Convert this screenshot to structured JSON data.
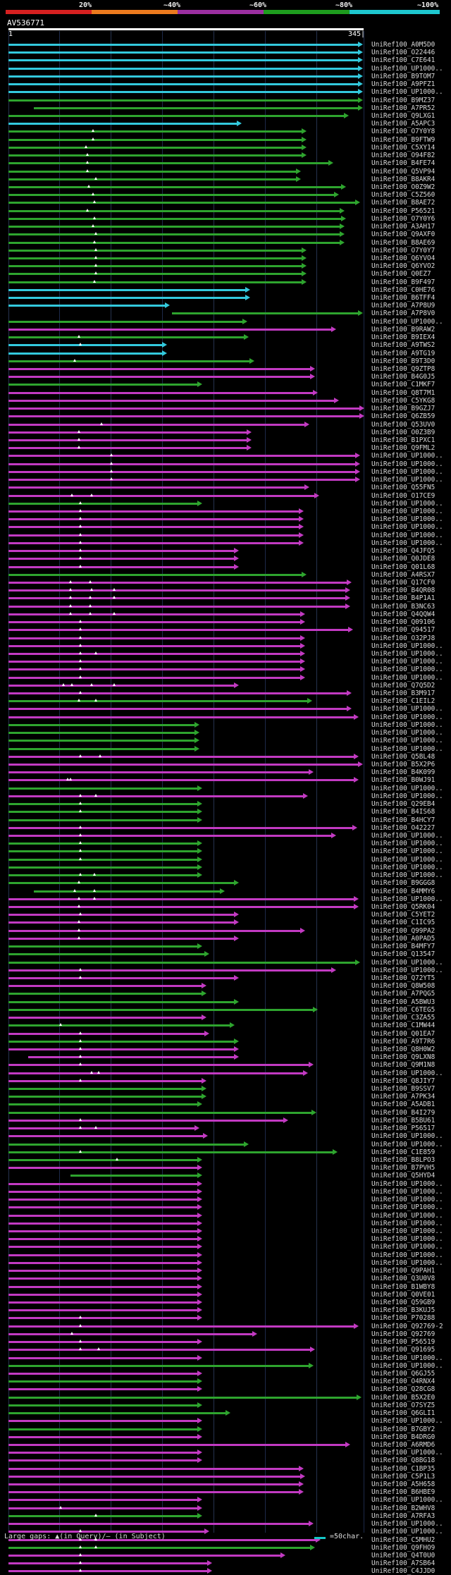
{
  "legend": {
    "labels": [
      "20%",
      "~40%",
      "~60%",
      "~80%",
      "~100%"
    ],
    "colors": [
      "#d62020",
      "#ec7a1e",
      "#9b2fa0",
      "#1e9c1e",
      "#1ec7cf"
    ]
  },
  "query": {
    "id": "AV536771",
    "start": "1",
    "end": "345|"
  },
  "colors": {
    "cyan": "#33c9dd",
    "green": "#2ea42e",
    "magenta": "#c23ac2"
  },
  "rows": [
    {
      "label": "UniRef100_A0M5D0",
      "color": "cyan"
    },
    {
      "label": "UniRef100_O22446",
      "color": "cyan"
    },
    {
      "label": "UniRef100_C7E641",
      "color": "cyan"
    },
    {
      "label": "UniRef100_UP1000..",
      "color": "cyan"
    },
    {
      "label": "UniRef100_B9TOM7",
      "color": "cyan"
    },
    {
      "label": "UniRef100_A9PFZ1",
      "color": "cyan"
    },
    {
      "label": "UniRef100_UP1000..",
      "color": "cyan"
    },
    {
      "label": "UniRef100_B9MZ37",
      "color": "green"
    },
    {
      "label": "UniRef100_A7PR52",
      "color": "green"
    },
    {
      "label": "UniRef100_Q9LXG1",
      "color": "green"
    },
    {
      "label": "UniRef100_A5APC3",
      "color": "cyan"
    },
    {
      "label": "UniRef100_O7Y0Y8",
      "color": "green"
    },
    {
      "label": "UniRef100_B9FTW9",
      "color": "green"
    },
    {
      "label": "UniRef100_C5XY14",
      "color": "green"
    },
    {
      "label": "UniRef100_O94F82",
      "color": "green"
    },
    {
      "label": "UniRef100_B4FE74",
      "color": "green"
    },
    {
      "label": "UniRef100_Q5VP94",
      "color": "green"
    },
    {
      "label": "UniRef100_B8AKR4",
      "color": "green"
    },
    {
      "label": "UniRef100_O0Z9W2",
      "color": "green"
    },
    {
      "label": "UniRef100_C5Z560",
      "color": "green"
    },
    {
      "label": "UniRef100_B8AE72",
      "color": "green"
    },
    {
      "label": "UniRef100_P56521",
      "color": "green"
    },
    {
      "label": "UniRef100_O7Y0Y6",
      "color": "green"
    },
    {
      "label": "UniRef100_A3AH17",
      "color": "green"
    },
    {
      "label": "UniRef100_Q9AXF0",
      "color": "green"
    },
    {
      "label": "UniRef100_B8AE69",
      "color": "green"
    },
    {
      "label": "UniRef100_O7Y0Y7",
      "color": "green"
    },
    {
      "label": "UniRef100_Q6YVO4",
      "color": "green"
    },
    {
      "label": "UniRef100_Q6YVO2",
      "color": "green"
    },
    {
      "label": "UniRef100_Q0EZ7",
      "color": "green"
    },
    {
      "label": "UniRef100_B9F497",
      "color": "green"
    },
    {
      "label": "UniRef100_C0HE76",
      "color": "cyan"
    },
    {
      "label": "UniRef100_B6TFF4",
      "color": "cyan"
    },
    {
      "label": "UniRef100_A7P8U9",
      "color": "cyan"
    },
    {
      "label": "UniRef100_A7P8V0",
      "color": "green"
    },
    {
      "label": "UniRef100_UP1000..",
      "color": "green"
    },
    {
      "label": "UniRef100_B9RAW2",
      "color": "magenta"
    },
    {
      "label": "UniRef100_B9IEX4",
      "color": "green"
    },
    {
      "label": "UniRef100_A9TWS2",
      "color": "cyan"
    },
    {
      "label": "UniRef100_A9TG19",
      "color": "cyan"
    },
    {
      "label": "UniRef100_B9T3D0",
      "color": "green"
    },
    {
      "label": "UniRef100_Q9ZTP8",
      "color": "magenta"
    },
    {
      "label": "UniRef100_B4G0J5",
      "color": "magenta"
    },
    {
      "label": "UniRef100_C1MKF7",
      "color": "green"
    },
    {
      "label": "UniRef100_Q8T7M1",
      "color": "magenta"
    },
    {
      "label": "UniRef100_C5YKG8",
      "color": "magenta"
    },
    {
      "label": "UniRef100_B9GZJ7",
      "color": "magenta"
    },
    {
      "label": "UniRef100_Q6ZB59",
      "color": "magenta"
    },
    {
      "label": "UniRef100_Q53UV0",
      "color": "magenta"
    },
    {
      "label": "UniRef100_O0Z3B9",
      "color": "magenta"
    },
    {
      "label": "UniRef100_B1PXC1",
      "color": "magenta"
    },
    {
      "label": "UniRef100_Q9FML2",
      "color": "magenta"
    },
    {
      "label": "UniRef100_UP1000..",
      "color": "magenta"
    },
    {
      "label": "UniRef100_UP1000..",
      "color": "magenta"
    },
    {
      "label": "UniRef100_UP1000..",
      "color": "magenta"
    },
    {
      "label": "UniRef100_UP1000..",
      "color": "magenta"
    },
    {
      "label": "UniRef100_Q55FN5",
      "color": "magenta"
    },
    {
      "label": "UniRef100_O17CE9",
      "color": "magenta"
    },
    {
      "label": "UniRef100_UP1000..",
      "color": "green"
    },
    {
      "label": "UniRef100_UP1000..",
      "color": "magenta"
    },
    {
      "label": "UniRef100_UP1000..",
      "color": "magenta"
    },
    {
      "label": "UniRef100_UP1000..",
      "color": "magenta"
    },
    {
      "label": "UniRef100_UP1000..",
      "color": "magenta"
    },
    {
      "label": "UniRef100_UP1000..",
      "color": "magenta"
    },
    {
      "label": "UniRef100_Q4JFQ5",
      "color": "magenta"
    },
    {
      "label": "UniRef100_Q0JDE8",
      "color": "magenta"
    },
    {
      "label": "UniRef100_Q01L68",
      "color": "magenta"
    },
    {
      "label": "UniRef100_A4RSX7",
      "color": "green"
    },
    {
      "label": "UniRef100_Q17CF0",
      "color": "magenta"
    },
    {
      "label": "UniRef100_B4QR08",
      "color": "magenta"
    },
    {
      "label": "UniRef100_B4P1A1",
      "color": "magenta"
    },
    {
      "label": "UniRef100_B3NC63",
      "color": "magenta"
    },
    {
      "label": "UniRef100_Q4QQW4",
      "color": "magenta"
    },
    {
      "label": "UniRef100_Q09106",
      "color": "magenta"
    },
    {
      "label": "UniRef100_Q94517",
      "color": "magenta"
    },
    {
      "label": "UniRef100_O32PJ8",
      "color": "magenta"
    },
    {
      "label": "UniRef100_UP1000..",
      "color": "magenta"
    },
    {
      "label": "UniRef100_UP1000..",
      "color": "magenta"
    },
    {
      "label": "UniRef100_UP1000..",
      "color": "magenta"
    },
    {
      "label": "UniRef100_UP1000..",
      "color": "magenta"
    },
    {
      "label": "UniRef100_UP1000..",
      "color": "magenta"
    },
    {
      "label": "UniRef100_Q7Q5D2",
      "color": "magenta"
    },
    {
      "label": "UniRef100_B3M917",
      "color": "magenta"
    },
    {
      "label": "UniRef100_C1EIL2",
      "color": "green"
    },
    {
      "label": "UniRef100_UP1000..",
      "color": "magenta"
    },
    {
      "label": "UniRef100_UP1000..",
      "color": "magenta"
    },
    {
      "label": "UniRef100_UP1000..",
      "color": "green"
    },
    {
      "label": "UniRef100_UP1000..",
      "color": "green"
    },
    {
      "label": "UniRef100_UP1000..",
      "color": "green"
    },
    {
      "label": "UniRef100_UP1000..",
      "color": "green"
    },
    {
      "label": "UniRef100_Q5BL48",
      "color": "magenta"
    },
    {
      "label": "UniRef100_B5X2P6",
      "color": "magenta"
    },
    {
      "label": "UniRef100_B4K099",
      "color": "magenta"
    },
    {
      "label": "UniRef100_B0WJ91",
      "color": "magenta"
    },
    {
      "label": "UniRef100_UP1000..",
      "color": "green"
    },
    {
      "label": "UniRef100_UP1000..",
      "color": "magenta"
    },
    {
      "label": "UniRef100_Q29EB4",
      "color": "green"
    },
    {
      "label": "UniRef100_B4IS68",
      "color": "green"
    },
    {
      "label": "UniRef100_B4HCY7",
      "color": "green"
    },
    {
      "label": "UniRef100_O42227",
      "color": "magenta"
    },
    {
      "label": "UniRef100_UP1000..",
      "color": "magenta"
    },
    {
      "label": "UniRef100_UP1000..",
      "color": "green"
    },
    {
      "label": "UniRef100_UP1000..",
      "color": "green"
    },
    {
      "label": "UniRef100_UP1000..",
      "color": "green"
    },
    {
      "label": "UniRef100_UP1000..",
      "color": "green"
    },
    {
      "label": "UniRef100_UP1000..",
      "color": "green"
    },
    {
      "label": "UniRef100_B9GGG8",
      "color": "green"
    },
    {
      "label": "UniRef100_B4MMY6",
      "color": "green"
    },
    {
      "label": "UniRef100_UP1000..",
      "color": "magenta"
    },
    {
      "label": "UniRef100_Q5RK04",
      "color": "magenta"
    },
    {
      "label": "UniRef100_C5YET2",
      "color": "magenta"
    },
    {
      "label": "UniRef100_C1IC95",
      "color": "magenta"
    },
    {
      "label": "UniRef100_Q99PA2",
      "color": "magenta"
    },
    {
      "label": "UniRef100_A0PAD5",
      "color": "magenta"
    },
    {
      "label": "UniRef100_B4MFY7",
      "color": "green"
    },
    {
      "label": "UniRef100_Q13547",
      "color": "green"
    },
    {
      "label": "UniRef100_UP1000..",
      "color": "green"
    },
    {
      "label": "UniRef100_UP1000..",
      "color": "magenta"
    },
    {
      "label": "UniRef100_Q72YT5",
      "color": "magenta"
    },
    {
      "label": "UniRef100_Q8W508",
      "color": "magenta"
    },
    {
      "label": "UniRef100_A7PQG5",
      "color": "green"
    },
    {
      "label": "UniRef100_A5BWU3",
      "color": "green"
    },
    {
      "label": "UniRef100_C6TEG5",
      "color": "green"
    },
    {
      "label": "UniRef100_C3ZA55",
      "color": "magenta"
    },
    {
      "label": "UniRef100_C1MW44",
      "color": "green"
    },
    {
      "label": "UniRef100_Q01EA7",
      "color": "magenta"
    },
    {
      "label": "UniRef100_A9T7R6",
      "color": "green"
    },
    {
      "label": "UniRef100_Q8H0W2",
      "color": "magenta"
    },
    {
      "label": "UniRef100_Q9LXN8",
      "color": "magenta"
    },
    {
      "label": "UniRef100_Q9M1N8",
      "color": "magenta"
    },
    {
      "label": "UniRef100_UP1000..",
      "color": "magenta"
    },
    {
      "label": "UniRef100_Q8JIY7",
      "color": "magenta"
    },
    {
      "label": "UniRef100_B9SSV7",
      "color": "green"
    },
    {
      "label": "UniRef100_A7PK34",
      "color": "green"
    },
    {
      "label": "UniRef100_A5ADB1",
      "color": "green"
    },
    {
      "label": "UniRef100_B4I279",
      "color": "green"
    },
    {
      "label": "UniRef100_B5BU61",
      "color": "magenta"
    },
    {
      "label": "UniRef100_P56517",
      "color": "magenta"
    },
    {
      "label": "UniRef100_UP1000..",
      "color": "magenta"
    },
    {
      "label": "UniRef100_UP1000..",
      "color": "green"
    },
    {
      "label": "UniRef100_C1E859",
      "color": "green"
    },
    {
      "label": "UniRef100_B8LPO3",
      "color": "green"
    },
    {
      "label": "UniRef100_B7PVH5",
      "color": "magenta"
    },
    {
      "label": "UniRef100_Q5HYD4",
      "color": "green"
    },
    {
      "label": "UniRef100_UP1000..",
      "color": "magenta"
    },
    {
      "label": "UniRef100_UP1000..",
      "color": "magenta"
    },
    {
      "label": "UniRef100_UP1000..",
      "color": "magenta"
    },
    {
      "label": "UniRef100_UP1000..",
      "color": "magenta"
    },
    {
      "label": "UniRef100_UP1000..",
      "color": "magenta"
    },
    {
      "label": "UniRef100_UP1000..",
      "color": "magenta"
    },
    {
      "label": "UniRef100_UP1000..",
      "color": "magenta"
    },
    {
      "label": "UniRef100_UP1000..",
      "color": "magenta"
    },
    {
      "label": "UniRef100_UP1000..",
      "color": "magenta"
    },
    {
      "label": "UniRef100_UP1000..",
      "color": "magenta"
    },
    {
      "label": "UniRef100_UP1000..",
      "color": "magenta"
    },
    {
      "label": "UniRef100_Q9PAH1",
      "color": "magenta"
    },
    {
      "label": "UniRef100_Q3U0V8",
      "color": "magenta"
    },
    {
      "label": "UniRef100_B1WBY8",
      "color": "magenta"
    },
    {
      "label": "UniRef100_Q0VE01",
      "color": "magenta"
    },
    {
      "label": "UniRef100_Q59GB9",
      "color": "magenta"
    },
    {
      "label": "UniRef100_B3KUJ5",
      "color": "magenta"
    },
    {
      "label": "UniRef100_P70288",
      "color": "magenta"
    },
    {
      "label": "UniRef100_Q92769-2",
      "color": "magenta"
    },
    {
      "label": "UniRef100_Q92769",
      "color": "magenta"
    },
    {
      "label": "UniRef100_P56519",
      "color": "magenta"
    },
    {
      "label": "UniRef100_Q91695",
      "color": "magenta"
    },
    {
      "label": "UniRef100_UP1000..",
      "color": "magenta"
    },
    {
      "label": "UniRef100_UP1000..",
      "color": "green"
    },
    {
      "label": "UniRef100_Q6GJ55",
      "color": "magenta"
    },
    {
      "label": "UniRef100_O4RNX4",
      "color": "green"
    },
    {
      "label": "UniRef100_Q28CG8",
      "color": "magenta"
    },
    {
      "label": "UniRef100_B5X2E0",
      "color": "green"
    },
    {
      "label": "UniRef100_O7SYZ5",
      "color": "green"
    },
    {
      "label": "UniRef100_Q6GLI1",
      "color": "green"
    },
    {
      "label": "UniRef100_UP1000..",
      "color": "magenta"
    },
    {
      "label": "UniRef100_B7GBY2",
      "color": "green"
    },
    {
      "label": "UniRef100_B4DRG0",
      "color": "magenta"
    },
    {
      "label": "UniRef100_A6RMD6",
      "color": "magenta"
    },
    {
      "label": "UniRef100_UP1000..",
      "color": "magenta"
    },
    {
      "label": "UniRef100_Q8BG18",
      "color": "magenta"
    },
    {
      "label": "UniRef100_C1BP35",
      "color": "magenta"
    },
    {
      "label": "UniRef100_C5P1L3",
      "color": "magenta"
    },
    {
      "label": "UniRef100_A5H658",
      "color": "magenta"
    },
    {
      "label": "UniRef100_B6HBE9",
      "color": "magenta"
    },
    {
      "label": "UniRef100_UP1000..",
      "color": "magenta"
    },
    {
      "label": "UniRef100_B2WHV8",
      "color": "magenta"
    },
    {
      "label": "UniRef100_A7RFA3",
      "color": "green"
    },
    {
      "label": "UniRef100_UP1000..",
      "color": "magenta"
    },
    {
      "label": "UniRef100_UP1000..",
      "color": "magenta"
    },
    {
      "label": "UniRef100_C5MHU2",
      "color": "magenta"
    },
    {
      "label": "UniRef100_Q9FHO9",
      "color": "green"
    },
    {
      "label": "UniRef100_Q4T0U0",
      "color": "magenta"
    },
    {
      "label": "UniRef100_A7SB64",
      "color": "magenta"
    },
    {
      "label": "UniRef100_C4JJD0",
      "color": "magenta"
    }
  ],
  "footer": {
    "gaps_text": "Large gaps: ▲(in Query)/— (in Subject)",
    "scale_text": "=50char."
  }
}
